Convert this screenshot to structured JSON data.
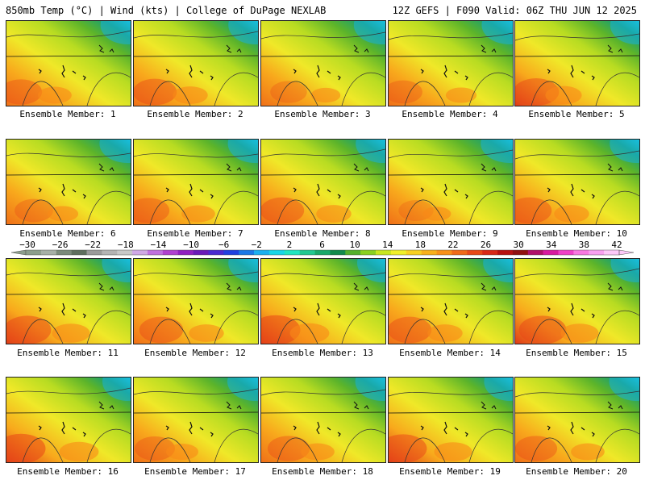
{
  "header": {
    "left": "850mb Temp (°C) | Wind (kts) | College of DuPage NEXLAB",
    "right": "12Z GEFS | F090 Valid: 06Z THU JUN 12 2025"
  },
  "caption_prefix": "Ensemble Member: ",
  "members": [
    {
      "id": 1,
      "warmth": 0.55
    },
    {
      "id": 2,
      "warmth": 0.6
    },
    {
      "id": 3,
      "warmth": 0.4
    },
    {
      "id": 4,
      "warmth": 0.45
    },
    {
      "id": 5,
      "warmth": 0.65
    },
    {
      "id": 6,
      "warmth": 0.45
    },
    {
      "id": 7,
      "warmth": 0.55
    },
    {
      "id": 8,
      "warmth": 0.6
    },
    {
      "id": 9,
      "warmth": 0.35
    },
    {
      "id": 10,
      "warmth": 0.6
    },
    {
      "id": 11,
      "warmth": 0.7
    },
    {
      "id": 12,
      "warmth": 0.6
    },
    {
      "id": 13,
      "warmth": 0.75
    },
    {
      "id": 14,
      "warmth": 0.6
    },
    {
      "id": 15,
      "warmth": 0.7
    },
    {
      "id": 16,
      "warmth": 0.75
    },
    {
      "id": 17,
      "warmth": 0.5
    },
    {
      "id": 18,
      "warmth": 0.55
    },
    {
      "id": 19,
      "warmth": 0.7
    },
    {
      "id": 20,
      "warmth": 0.55
    }
  ],
  "colorbar": {
    "ticks": [
      "−30",
      "−26",
      "−22",
      "−18",
      "−14",
      "−10",
      "−6",
      "−2",
      "2",
      "6",
      "10",
      "14",
      "18",
      "22",
      "26",
      "30",
      "34",
      "38",
      "42"
    ],
    "colors": [
      "#8c9e8c",
      "#a6b0a6",
      "#7a8a7a",
      "#5e6e5e",
      "#9a9a9a",
      "#b4b4b4",
      "#c8c8c8",
      "#d0a8e6",
      "#c070e0",
      "#b040d0",
      "#9020c0",
      "#6a1ab8",
      "#4a2ad0",
      "#2040e0",
      "#1a78e6",
      "#1ab0f0",
      "#18d6e6",
      "#20e6c0",
      "#22c890",
      "#19a86a",
      "#138a4c",
      "#55b02c",
      "#8ad020",
      "#c8e61e",
      "#f0f028",
      "#f8d020",
      "#f8b01a",
      "#f89018",
      "#f06a18",
      "#e84818",
      "#d82818",
      "#b81010",
      "#901010",
      "#b0106a",
      "#d81aa0",
      "#f040c8",
      "#f878e0",
      "#f8a0f0",
      "#fcc8f8"
    ]
  }
}
